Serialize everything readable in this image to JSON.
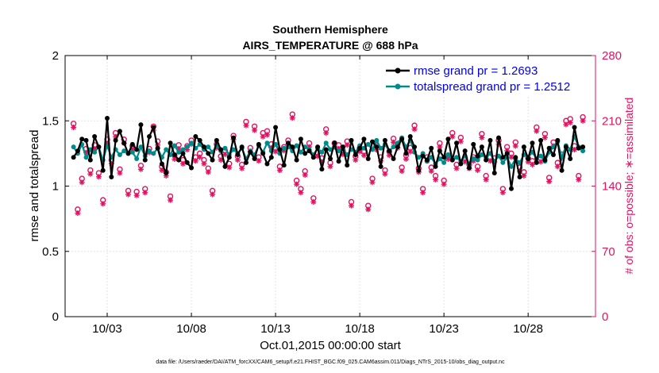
{
  "chart_data": {
    "type": "line",
    "title": "Southern Hemisphere",
    "subtitle": "AIRS_TEMPERATURE @ 688 hPa",
    "xlabel": "Oct.01,2015 00:00:00 start",
    "ylabel": "rmse and totalspread",
    "y2label": "# of obs: o=possible; ∗=assimilated",
    "footnote": "data file: /Users/raeder/DAI/ATM_forcXX/CAM6_setup/f.e21.FHIST_BGC.f09_025.CAM6assim.011/Diags_NTrS_2015-10/obs_diag_output.nc",
    "x_range": [
      0.5,
      32.0
    ],
    "x_ticks": [
      3,
      8,
      13,
      18,
      23,
      28
    ],
    "x_tick_labels": [
      "10/03",
      "10/08",
      "10/13",
      "10/18",
      "10/23",
      "10/28"
    ],
    "ylim": [
      0,
      2
    ],
    "y_ticks": [
      0,
      0.5,
      1,
      1.5,
      2
    ],
    "y_tick_labels": [
      "0",
      "0.5",
      "1",
      "1.5",
      "2"
    ],
    "y2lim": [
      0,
      280
    ],
    "y2_ticks": [
      0,
      70,
      140,
      210,
      280
    ],
    "y2_tick_labels": [
      "0",
      "70",
      "140",
      "210",
      "280"
    ],
    "grid": true,
    "legend_position": "top-right",
    "series": [
      {
        "name": "rmse grand pr = 1.2693",
        "color": "#000000",
        "x": [
          1.0,
          1.25,
          1.5,
          1.75,
          2.0,
          2.25,
          2.5,
          2.75,
          3.0,
          3.25,
          3.5,
          3.75,
          4.0,
          4.25,
          4.5,
          4.75,
          5.0,
          5.25,
          5.5,
          5.75,
          6.0,
          6.25,
          6.5,
          6.75,
          7.0,
          7.25,
          7.5,
          7.75,
          8.0,
          8.25,
          8.5,
          8.75,
          9.0,
          9.25,
          9.5,
          9.75,
          10.0,
          10.25,
          10.5,
          10.75,
          11.0,
          11.25,
          11.5,
          11.75,
          12.0,
          12.25,
          12.5,
          12.75,
          13.0,
          13.25,
          13.5,
          13.75,
          14.0,
          14.25,
          14.5,
          14.75,
          15.0,
          15.25,
          15.5,
          15.75,
          16.0,
          16.25,
          16.5,
          16.75,
          17.0,
          17.25,
          17.5,
          17.75,
          18.0,
          18.25,
          18.5,
          18.75,
          19.0,
          19.25,
          19.5,
          19.75,
          20.0,
          20.25,
          20.5,
          20.75,
          21.0,
          21.25,
          21.5,
          21.75,
          22.0,
          22.25,
          22.5,
          22.75,
          23.0,
          23.25,
          23.5,
          23.75,
          24.0,
          24.25,
          24.5,
          24.75,
          25.0,
          25.25,
          25.5,
          25.75,
          26.0,
          26.25,
          26.5,
          26.75,
          27.0,
          27.25,
          27.5,
          27.75,
          28.0,
          28.25,
          28.5,
          28.75,
          29.0,
          29.25,
          29.5,
          29.75,
          30.0,
          30.25,
          30.5,
          30.75,
          31.0,
          31.25
        ],
        "values": [
          1.22,
          1.27,
          1.36,
          1.35,
          1.2,
          1.38,
          1.3,
          1.12,
          1.52,
          1.07,
          1.35,
          1.42,
          1.33,
          1.25,
          1.32,
          1.28,
          1.47,
          1.2,
          1.38,
          1.45,
          1.29,
          1.17,
          1.1,
          1.33,
          1.24,
          1.2,
          1.25,
          1.18,
          1.14,
          1.38,
          1.35,
          1.3,
          1.25,
          1.2,
          1.35,
          1.28,
          1.15,
          1.22,
          1.37,
          1.24,
          1.3,
          1.18,
          1.26,
          1.21,
          1.32,
          1.25,
          1.17,
          1.22,
          1.45,
          1.28,
          1.16,
          1.33,
          1.3,
          1.2,
          1.36,
          1.25,
          1.27,
          1.22,
          1.3,
          1.13,
          1.28,
          1.21,
          1.33,
          1.19,
          1.3,
          1.16,
          1.35,
          1.24,
          1.29,
          1.36,
          1.21,
          1.34,
          1.3,
          1.15,
          1.35,
          1.27,
          1.21,
          1.3,
          1.36,
          1.25,
          1.38,
          1.3,
          1.12,
          1.23,
          1.2,
          1.29,
          1.15,
          1.27,
          1.22,
          1.36,
          1.2,
          1.33,
          1.17,
          1.27,
          1.14,
          1.32,
          1.23,
          1.3,
          1.2,
          1.35,
          1.1,
          1.37,
          1.22,
          1.25,
          0.98,
          1.22,
          1.07,
          1.3,
          1.21,
          1.33,
          1.18,
          1.35,
          1.2,
          1.29,
          1.24,
          1.35,
          1.12,
          1.3,
          1.21,
          1.45,
          1.29,
          1.3
        ]
      },
      {
        "name": "totalspread grand pr = 1.2512",
        "color": "#008b8b",
        "x": [
          1.0,
          1.25,
          1.5,
          1.75,
          2.0,
          2.25,
          2.5,
          2.75,
          3.0,
          3.25,
          3.5,
          3.75,
          4.0,
          4.25,
          4.5,
          4.75,
          5.0,
          5.25,
          5.5,
          5.75,
          6.0,
          6.25,
          6.5,
          6.75,
          7.0,
          7.25,
          7.5,
          7.75,
          8.0,
          8.25,
          8.5,
          8.75,
          9.0,
          9.25,
          9.5,
          9.75,
          10.0,
          10.25,
          10.5,
          10.75,
          11.0,
          11.25,
          11.5,
          11.75,
          12.0,
          12.25,
          12.5,
          12.75,
          13.0,
          13.25,
          13.5,
          13.75,
          14.0,
          14.25,
          14.5,
          14.75,
          15.0,
          15.25,
          15.5,
          15.75,
          16.0,
          16.25,
          16.5,
          16.75,
          17.0,
          17.25,
          17.5,
          17.75,
          18.0,
          18.25,
          18.5,
          18.75,
          19.0,
          19.25,
          19.5,
          19.75,
          20.0,
          20.25,
          20.5,
          20.75,
          21.0,
          21.25,
          21.5,
          21.75,
          22.0,
          22.25,
          22.5,
          22.75,
          23.0,
          23.25,
          23.5,
          23.75,
          24.0,
          24.25,
          24.5,
          24.75,
          25.0,
          25.25,
          25.5,
          25.75,
          26.0,
          26.25,
          26.5,
          26.75,
          27.0,
          27.25,
          27.5,
          27.75,
          28.0,
          28.25,
          28.5,
          28.75,
          29.0,
          29.25,
          29.5,
          29.75,
          30.0,
          30.25,
          30.5,
          30.75,
          31.0,
          31.25
        ],
        "values": [
          1.3,
          1.25,
          1.32,
          1.22,
          1.28,
          1.26,
          1.3,
          1.2,
          1.31,
          1.22,
          1.28,
          1.24,
          1.27,
          1.25,
          1.26,
          1.21,
          1.3,
          1.23,
          1.27,
          1.25,
          1.29,
          1.22,
          1.28,
          1.24,
          1.31,
          1.26,
          1.28,
          1.3,
          1.33,
          1.29,
          1.32,
          1.28,
          1.3,
          1.26,
          1.31,
          1.27,
          1.29,
          1.24,
          1.28,
          1.25,
          1.29,
          1.21,
          1.27,
          1.24,
          1.31,
          1.26,
          1.33,
          1.27,
          1.32,
          1.25,
          1.29,
          1.3,
          1.27,
          1.31,
          1.26,
          1.3,
          1.28,
          1.24,
          1.29,
          1.26,
          1.33,
          1.28,
          1.3,
          1.27,
          1.29,
          1.24,
          1.28,
          1.26,
          1.31,
          1.29,
          1.32,
          1.28,
          1.35,
          1.29,
          1.32,
          1.27,
          1.3,
          1.33,
          1.37,
          1.3,
          1.35,
          1.26,
          1.22,
          1.25,
          1.19,
          1.22,
          1.17,
          1.21,
          1.18,
          1.24,
          1.2,
          1.22,
          1.19,
          1.23,
          1.17,
          1.21,
          1.2,
          1.24,
          1.22,
          1.25,
          1.19,
          1.23,
          1.18,
          1.22,
          1.15,
          1.21,
          1.18,
          1.24,
          1.22,
          1.26,
          1.21,
          1.23,
          1.19,
          1.26,
          1.3,
          1.34,
          1.22,
          1.31,
          1.28,
          1.38,
          1.3,
          1.27
        ]
      }
    ],
    "obs_possible": {
      "name": "o=possible",
      "color": "#e2125f",
      "x": [
        1.0,
        1.25,
        1.5,
        1.75,
        2.0,
        2.25,
        2.5,
        2.75,
        3.0,
        3.25,
        3.5,
        3.75,
        4.0,
        4.25,
        4.5,
        4.75,
        5.0,
        5.25,
        5.5,
        5.75,
        6.0,
        6.25,
        6.5,
        6.75,
        7.0,
        7.25,
        7.5,
        7.75,
        8.0,
        8.25,
        8.5,
        8.75,
        9.0,
        9.25,
        9.5,
        9.75,
        10.0,
        10.25,
        10.5,
        10.75,
        11.0,
        11.25,
        11.5,
        11.75,
        12.0,
        12.25,
        12.5,
        12.75,
        13.0,
        13.25,
        13.5,
        13.75,
        14.0,
        14.25,
        14.5,
        14.75,
        15.0,
        15.25,
        15.5,
        15.75,
        16.0,
        16.25,
        16.5,
        16.75,
        17.0,
        17.25,
        17.5,
        17.75,
        18.0,
        18.25,
        18.5,
        18.75,
        19.0,
        19.25,
        19.5,
        19.75,
        20.0,
        20.25,
        20.5,
        20.75,
        21.0,
        21.25,
        21.5,
        21.75,
        22.0,
        22.25,
        22.5,
        22.75,
        23.0,
        23.25,
        23.5,
        23.75,
        24.0,
        24.25,
        24.5,
        24.75,
        25.0,
        25.25,
        25.5,
        25.75,
        26.0,
        26.25,
        26.5,
        26.75,
        27.0,
        27.25,
        27.5,
        27.75,
        28.0,
        28.25,
        28.5,
        28.75,
        29.0,
        29.25,
        29.5,
        29.75,
        30.0,
        30.25,
        30.5,
        30.75,
        31.0,
        31.25
      ],
      "values": [
        207,
        115,
        148,
        180,
        157,
        184,
        154,
        125,
        190,
        168,
        197,
        158,
        190,
        135,
        183,
        134,
        162,
        137,
        180,
        204,
        188,
        161,
        155,
        129,
        173,
        184,
        168,
        183,
        189,
        171,
        175,
        168,
        159,
        135,
        185,
        172,
        178,
        164,
        194,
        172,
        163,
        209,
        181,
        204,
        171,
        197,
        199,
        185,
        181,
        161,
        182,
        189,
        217,
        146,
        137,
        156,
        186,
        127,
        176,
        170,
        201,
        165,
        186,
        184,
        178,
        188,
        123,
        172,
        181,
        177,
        119,
        148,
        183,
        171,
        157,
        177,
        191,
        185,
        160,
        173,
        181,
        205,
        159,
        137,
        171,
        160,
        151,
        186,
        146,
        173,
        197,
        163,
        192,
        170,
        163,
        171,
        161,
        196,
        151,
        171,
        170,
        189,
        137,
        182,
        175,
        187,
        160,
        155,
        170,
        167,
        203,
        170,
        196,
        149,
        187,
        165,
        174,
        210,
        212,
        183,
        151,
        214
      ]
    },
    "obs_assimilated": {
      "name": "∗=assimilated",
      "color": "#e2125f",
      "x": [
        1.0,
        1.25,
        1.5,
        1.75,
        2.0,
        2.25,
        2.5,
        2.75,
        3.0,
        3.25,
        3.5,
        3.75,
        4.0,
        4.25,
        4.5,
        4.75,
        5.0,
        5.25,
        5.5,
        5.75,
        6.0,
        6.25,
        6.5,
        6.75,
        7.0,
        7.25,
        7.5,
        7.75,
        8.0,
        8.25,
        8.5,
        8.75,
        9.0,
        9.25,
        9.5,
        9.75,
        10.0,
        10.25,
        10.5,
        10.75,
        11.0,
        11.25,
        11.5,
        11.75,
        12.0,
        12.25,
        12.5,
        12.75,
        13.0,
        13.25,
        13.5,
        13.75,
        14.0,
        14.25,
        14.5,
        14.75,
        15.0,
        15.25,
        15.5,
        15.75,
        16.0,
        16.25,
        16.5,
        16.75,
        17.0,
        17.25,
        17.5,
        17.75,
        18.0,
        18.25,
        18.5,
        18.75,
        19.0,
        19.25,
        19.5,
        19.75,
        20.0,
        20.25,
        20.5,
        20.75,
        21.0,
        21.25,
        21.5,
        21.75,
        22.0,
        22.25,
        22.5,
        22.75,
        23.0,
        23.25,
        23.5,
        23.75,
        24.0,
        24.25,
        24.5,
        24.75,
        25.0,
        25.25,
        25.5,
        25.75,
        26.0,
        26.25,
        26.5,
        26.75,
        27.0,
        27.25,
        27.5,
        27.75,
        28.0,
        28.25,
        28.5,
        28.75,
        29.0,
        29.25,
        29.5,
        29.75,
        30.0,
        30.25,
        30.5,
        30.75,
        31.0,
        31.25
      ],
      "values": [
        203,
        111,
        144,
        176,
        153,
        180,
        150,
        121,
        186,
        164,
        193,
        154,
        186,
        131,
        179,
        130,
        158,
        133,
        176,
        200,
        184,
        157,
        151,
        125,
        169,
        180,
        164,
        179,
        185,
        167,
        171,
        164,
        155,
        131,
        181,
        168,
        174,
        160,
        190,
        168,
        159,
        205,
        177,
        200,
        167,
        193,
        195,
        181,
        177,
        157,
        178,
        185,
        213,
        142,
        133,
        152,
        182,
        123,
        172,
        166,
        197,
        161,
        182,
        180,
        174,
        184,
        119,
        168,
        177,
        173,
        115,
        144,
        179,
        167,
        153,
        173,
        187,
        181,
        156,
        169,
        177,
        201,
        155,
        133,
        167,
        156,
        147,
        182,
        142,
        169,
        193,
        159,
        188,
        166,
        159,
        167,
        157,
        192,
        147,
        167,
        166,
        185,
        133,
        178,
        171,
        183,
        156,
        151,
        166,
        163,
        199,
        166,
        192,
        145,
        183,
        161,
        170,
        206,
        208,
        179,
        147,
        210
      ]
    }
  }
}
